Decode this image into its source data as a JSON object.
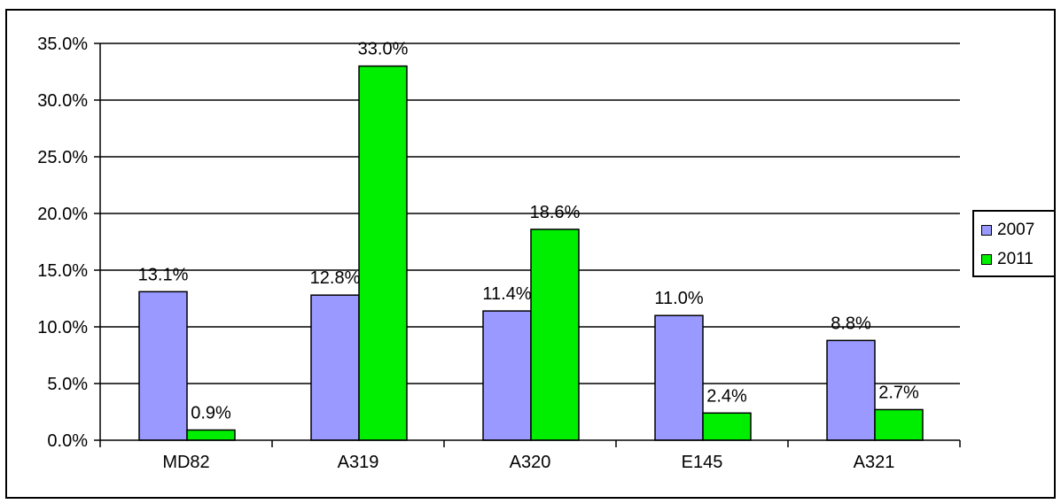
{
  "chart_data": {
    "type": "bar",
    "categories": [
      "MD82",
      "A319",
      "A320",
      "E145",
      "A321"
    ],
    "series": [
      {
        "name": "2007",
        "color": "#9999ff",
        "values": [
          13.1,
          12.8,
          11.4,
          11.0,
          8.8
        ],
        "labels": [
          "13.1%",
          "12.8%",
          "11.4%",
          "11.0%",
          "8.8%"
        ]
      },
      {
        "name": "2011",
        "color": "#00ee00",
        "values": [
          0.9,
          33.0,
          18.6,
          2.4,
          2.7
        ],
        "labels": [
          "0.9%",
          "33.0%",
          "18.6%",
          "2.4%",
          "2.7%"
        ]
      }
    ],
    "yticks": [
      0,
      5,
      10,
      15,
      20,
      25,
      30,
      35
    ],
    "ytick_labels": [
      "0.0%",
      "5.0%",
      "10.0%",
      "15.0%",
      "20.0%",
      "25.0%",
      "30.0%",
      "35.0%"
    ],
    "ylim": [
      0,
      35
    ],
    "grid": true,
    "legend_position": "right"
  }
}
